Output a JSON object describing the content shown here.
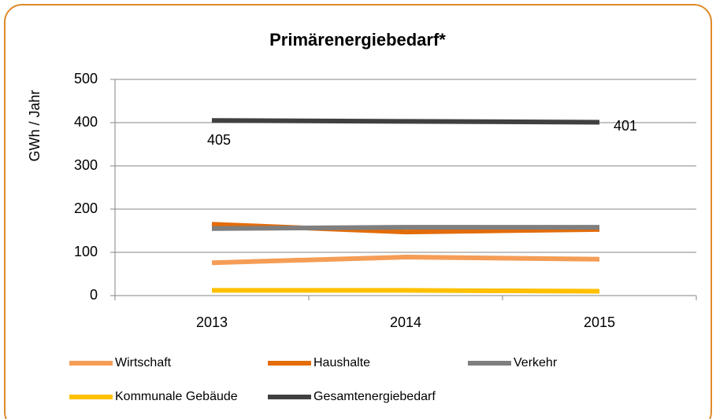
{
  "chart_data": {
    "type": "line",
    "title": "Primärenergiebedarf*",
    "y_label": "GWh / Jahr",
    "categories": [
      "2013",
      "2014",
      "2015"
    ],
    "series": [
      {
        "name": "Wirtschaft",
        "color": "#f59d56",
        "values": [
          76,
          89,
          84
        ]
      },
      {
        "name": "Haushalte",
        "color": "#e36c09",
        "values": [
          165,
          147,
          153
        ]
      },
      {
        "name": "Verkehr",
        "color": "#7f7f7f",
        "values": [
          155,
          158,
          158
        ]
      },
      {
        "name": "Kommunale Gebäude",
        "color": "#ffc000",
        "values": [
          12,
          12,
          10
        ]
      },
      {
        "name": "Gesamtenergiebedarf",
        "color": "#404040",
        "values": [
          405,
          403,
          401
        ],
        "value_labels": [
          "405",
          null,
          "401"
        ]
      }
    ],
    "ylim": [
      0,
      500
    ],
    "yticks": [
      0,
      100,
      200,
      300,
      400,
      500
    ],
    "grid": true,
    "legend": "bottom"
  }
}
